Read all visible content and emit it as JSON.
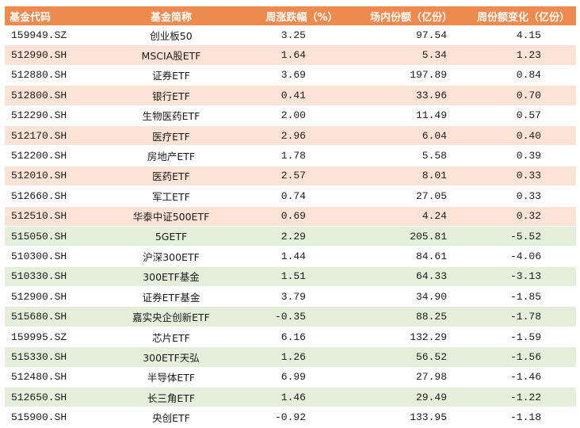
{
  "colors": {
    "header": "#ef8a4f",
    "peach_row": "#fde3d5",
    "green_row": "#e3efda",
    "white_row": "#ffffff"
  },
  "table": {
    "headers": [
      "基金代码",
      "基金简称",
      "周涨跌幅（%）",
      "场内份额（亿份）",
      "周份额变化（亿份）"
    ],
    "rows": [
      {
        "code": "159949.SZ",
        "name": "创业板50",
        "change": "3.25",
        "shares": "97.54",
        "share_change": "4.15",
        "tone": "light"
      },
      {
        "code": "512990.SH",
        "name": "MSCIA股ETF",
        "change": "1.64",
        "shares": "5.34",
        "share_change": "1.23",
        "tone": "peach"
      },
      {
        "code": "512880.SH",
        "name": "证券ETF",
        "change": "3.69",
        "shares": "197.89",
        "share_change": "0.84",
        "tone": "light"
      },
      {
        "code": "512800.SH",
        "name": "银行ETF",
        "change": "0.41",
        "shares": "33.96",
        "share_change": "0.70",
        "tone": "peach"
      },
      {
        "code": "512290.SH",
        "name": "生物医药ETF",
        "change": "2.00",
        "shares": "11.49",
        "share_change": "0.57",
        "tone": "light"
      },
      {
        "code": "512170.SH",
        "name": "医疗ETF",
        "change": "2.96",
        "shares": "6.04",
        "share_change": "0.40",
        "tone": "peach"
      },
      {
        "code": "512200.SH",
        "name": "房地产ETF",
        "change": "1.78",
        "shares": "5.58",
        "share_change": "0.39",
        "tone": "light"
      },
      {
        "code": "512010.SH",
        "name": "医药ETF",
        "change": "2.57",
        "shares": "8.01",
        "share_change": "0.33",
        "tone": "peach"
      },
      {
        "code": "512660.SH",
        "name": "军工ETF",
        "change": "0.74",
        "shares": "27.05",
        "share_change": "0.33",
        "tone": "light"
      },
      {
        "code": "512510.SH",
        "name": "华泰中证500ETF",
        "change": "0.69",
        "shares": "4.24",
        "share_change": "0.32",
        "tone": "peach"
      },
      {
        "code": "515050.SH",
        "name": "5GETF",
        "change": "2.29",
        "shares": "205.81",
        "share_change": "-5.52",
        "tone": "green"
      },
      {
        "code": "510300.SH",
        "name": "沪深300ETF",
        "change": "1.44",
        "shares": "84.61",
        "share_change": "-4.06",
        "tone": "light"
      },
      {
        "code": "510330.SH",
        "name": "300ETF基金",
        "change": "1.51",
        "shares": "64.33",
        "share_change": "-3.13",
        "tone": "green"
      },
      {
        "code": "512900.SH",
        "name": "证券ETF基金",
        "change": "3.79",
        "shares": "34.90",
        "share_change": "-1.85",
        "tone": "light"
      },
      {
        "code": "515680.SH",
        "name": "嘉实央企创新ETF",
        "change": "-0.35",
        "shares": "88.25",
        "share_change": "-1.78",
        "tone": "green"
      },
      {
        "code": "159995.SZ",
        "name": "芯片ETF",
        "change": "6.16",
        "shares": "132.29",
        "share_change": "-1.59",
        "tone": "light"
      },
      {
        "code": "515330.SH",
        "name": "300ETF天弘",
        "change": "1.26",
        "shares": "56.52",
        "share_change": "-1.56",
        "tone": "green"
      },
      {
        "code": "512480.SH",
        "name": "半导体ETF",
        "change": "6.99",
        "shares": "27.98",
        "share_change": "-1.46",
        "tone": "light"
      },
      {
        "code": "512650.SH",
        "name": "长三角ETF",
        "change": "1.46",
        "shares": "29.49",
        "share_change": "-1.22",
        "tone": "green"
      },
      {
        "code": "515900.SH",
        "name": "央创ETF",
        "change": "-0.92",
        "shares": "133.95",
        "share_change": "-1.18",
        "tone": "light"
      }
    ]
  }
}
